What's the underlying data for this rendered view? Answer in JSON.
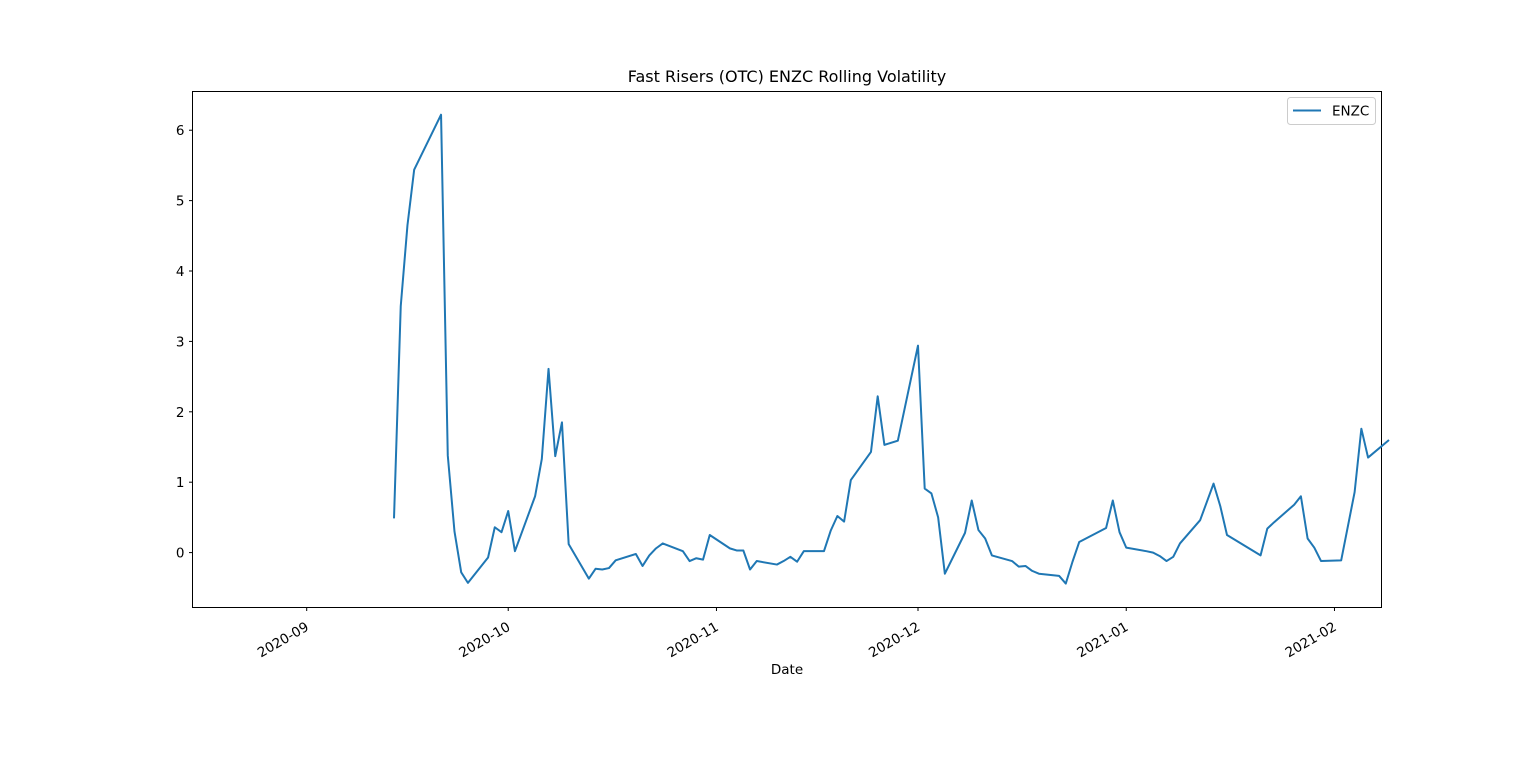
{
  "chart_data": {
    "type": "line",
    "title": "Fast Risers (OTC) ENZC Rolling Volatility",
    "xlabel": "Date",
    "ylabel": "",
    "xlim": [
      "2020-08-15",
      "2021-02-08"
    ],
    "ylim": [
      -0.78,
      6.55
    ],
    "x_ticks": [
      "2020-09-01",
      "2020-10-01",
      "2020-11-01",
      "2020-12-01",
      "2021-01-01",
      "2021-02-01"
    ],
    "x_tick_labels": [
      "2020-09",
      "2020-10",
      "2020-11",
      "2020-12",
      "2021-01",
      "2021-02"
    ],
    "y_ticks": [
      0,
      1,
      2,
      3,
      4,
      5,
      6
    ],
    "y_tick_labels": [
      "0",
      "1",
      "2",
      "3",
      "4",
      "5",
      "6"
    ],
    "grid": false,
    "legend": {
      "position": "top-right",
      "entries": [
        "ENZC"
      ]
    },
    "colors": {
      "ENZC": "#1f77b4"
    },
    "series": [
      {
        "name": "ENZC",
        "points": [
          [
            "2020-09-14",
            0.5
          ],
          [
            "2020-09-15",
            3.5
          ],
          [
            "2020-09-16",
            4.65
          ],
          [
            "2020-09-17",
            5.44
          ],
          [
            "2020-09-21",
            6.22
          ],
          [
            "2020-09-22",
            1.38
          ],
          [
            "2020-09-23",
            0.3
          ],
          [
            "2020-09-24",
            -0.28
          ],
          [
            "2020-09-25",
            -0.43
          ],
          [
            "2020-09-28",
            -0.07
          ],
          [
            "2020-09-29",
            0.36
          ],
          [
            "2020-09-30",
            0.29
          ],
          [
            "2020-10-01",
            0.59
          ],
          [
            "2020-10-02",
            0.02
          ],
          [
            "2020-10-05",
            0.8
          ],
          [
            "2020-10-06",
            1.33
          ],
          [
            "2020-10-07",
            2.61
          ],
          [
            "2020-10-08",
            1.37
          ],
          [
            "2020-10-09",
            1.85
          ],
          [
            "2020-10-10",
            0.12
          ],
          [
            "2020-10-13",
            -0.37
          ],
          [
            "2020-10-14",
            -0.23
          ],
          [
            "2020-10-15",
            -0.24
          ],
          [
            "2020-10-16",
            -0.22
          ],
          [
            "2020-10-17",
            -0.11
          ],
          [
            "2020-10-20",
            -0.02
          ],
          [
            "2020-10-21",
            -0.19
          ],
          [
            "2020-10-22",
            -0.04
          ],
          [
            "2020-10-23",
            0.06
          ],
          [
            "2020-10-24",
            0.13
          ],
          [
            "2020-10-27",
            0.02
          ],
          [
            "2020-10-28",
            -0.12
          ],
          [
            "2020-10-29",
            -0.08
          ],
          [
            "2020-10-30",
            -0.1
          ],
          [
            "2020-10-31",
            0.25
          ],
          [
            "2020-11-03",
            0.06
          ],
          [
            "2020-11-04",
            0.03
          ],
          [
            "2020-11-05",
            0.03
          ],
          [
            "2020-11-06",
            -0.24
          ],
          [
            "2020-11-07",
            -0.12
          ],
          [
            "2020-11-10",
            -0.17
          ],
          [
            "2020-11-11",
            -0.12
          ],
          [
            "2020-11-12",
            -0.06
          ],
          [
            "2020-11-13",
            -0.13
          ],
          [
            "2020-11-14",
            0.02
          ],
          [
            "2020-11-17",
            0.02
          ],
          [
            "2020-11-18",
            0.31
          ],
          [
            "2020-11-19",
            0.52
          ],
          [
            "2020-11-20",
            0.44
          ],
          [
            "2020-11-21",
            1.03
          ],
          [
            "2020-11-24",
            1.43
          ],
          [
            "2020-11-25",
            2.22
          ],
          [
            "2020-11-26",
            1.53
          ],
          [
            "2020-11-28",
            1.59
          ],
          [
            "2020-12-01",
            2.94
          ],
          [
            "2020-12-02",
            0.91
          ],
          [
            "2020-12-03",
            0.84
          ],
          [
            "2020-12-04",
            0.5
          ],
          [
            "2020-12-05",
            -0.3
          ],
          [
            "2020-12-08",
            0.28
          ],
          [
            "2020-12-09",
            0.74
          ],
          [
            "2020-12-10",
            0.32
          ],
          [
            "2020-12-11",
            0.2
          ],
          [
            "2020-12-12",
            -0.04
          ],
          [
            "2020-12-15",
            -0.12
          ],
          [
            "2020-12-16",
            -0.2
          ],
          [
            "2020-12-17",
            -0.19
          ],
          [
            "2020-12-18",
            -0.26
          ],
          [
            "2020-12-19",
            -0.3
          ],
          [
            "2020-12-22",
            -0.33
          ],
          [
            "2020-12-23",
            -0.44
          ],
          [
            "2020-12-24",
            -0.13
          ],
          [
            "2020-12-25",
            0.15
          ],
          [
            "2020-12-29",
            0.35
          ],
          [
            "2020-12-30",
            0.74
          ],
          [
            "2020-12-31",
            0.29
          ],
          [
            "2021-01-01",
            0.07
          ],
          [
            "2021-01-04",
            0.02
          ],
          [
            "2021-01-05",
            0.0
          ],
          [
            "2021-01-06",
            -0.05
          ],
          [
            "2021-01-07",
            -0.12
          ],
          [
            "2021-01-08",
            -0.06
          ],
          [
            "2021-01-09",
            0.13
          ],
          [
            "2021-01-12",
            0.46
          ],
          [
            "2021-01-13",
            0.72
          ],
          [
            "2021-01-14",
            0.98
          ],
          [
            "2021-01-15",
            0.66
          ],
          [
            "2021-01-16",
            0.25
          ],
          [
            "2021-01-21",
            -0.04
          ],
          [
            "2021-01-22",
            0.34
          ],
          [
            "2021-01-23",
            0.43
          ],
          [
            "2021-01-26",
            0.68
          ],
          [
            "2021-01-27",
            0.8
          ],
          [
            "2021-01-28",
            0.2
          ],
          [
            "2021-01-29",
            0.07
          ],
          [
            "2021-01-30",
            -0.12
          ],
          [
            "2021-02-02",
            -0.11
          ],
          [
            "2021-02-04",
            0.86
          ],
          [
            "2021-02-05",
            1.76
          ],
          [
            "2021-02-06",
            1.35
          ],
          [
            "2021-02-09",
            1.59
          ]
        ]
      }
    ]
  }
}
